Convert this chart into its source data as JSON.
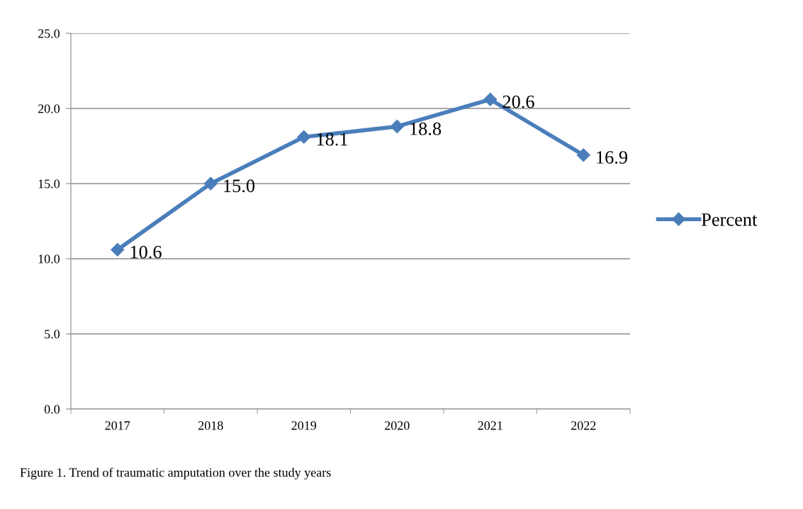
{
  "chart_data": {
    "type": "line",
    "categories": [
      "2017",
      "2018",
      "2019",
      "2020",
      "2021",
      "2022"
    ],
    "series": [
      {
        "name": "Percent",
        "color": "#4a7ebb",
        "values": [
          10.6,
          15.0,
          18.1,
          18.8,
          20.6,
          16.9
        ],
        "value_labels": [
          "10.6",
          "15.0",
          "18.1",
          "18.8",
          "20.6",
          "16.9"
        ]
      }
    ],
    "ylim": [
      0,
      25
    ],
    "yticks": [
      {
        "value": 0,
        "label": "0.0"
      },
      {
        "value": 5,
        "label": "5.0"
      },
      {
        "value": 10,
        "label": "10.0"
      },
      {
        "value": 15,
        "label": "15.0"
      },
      {
        "value": 20,
        "label": "20.0"
      },
      {
        "value": 25,
        "label": "25.0"
      }
    ],
    "grid": "y",
    "legend": "right",
    "marker": "diamond",
    "line_style": "solid",
    "annotations": [
      "Figure 1. Trend of traumatic amputation over the study years"
    ]
  }
}
